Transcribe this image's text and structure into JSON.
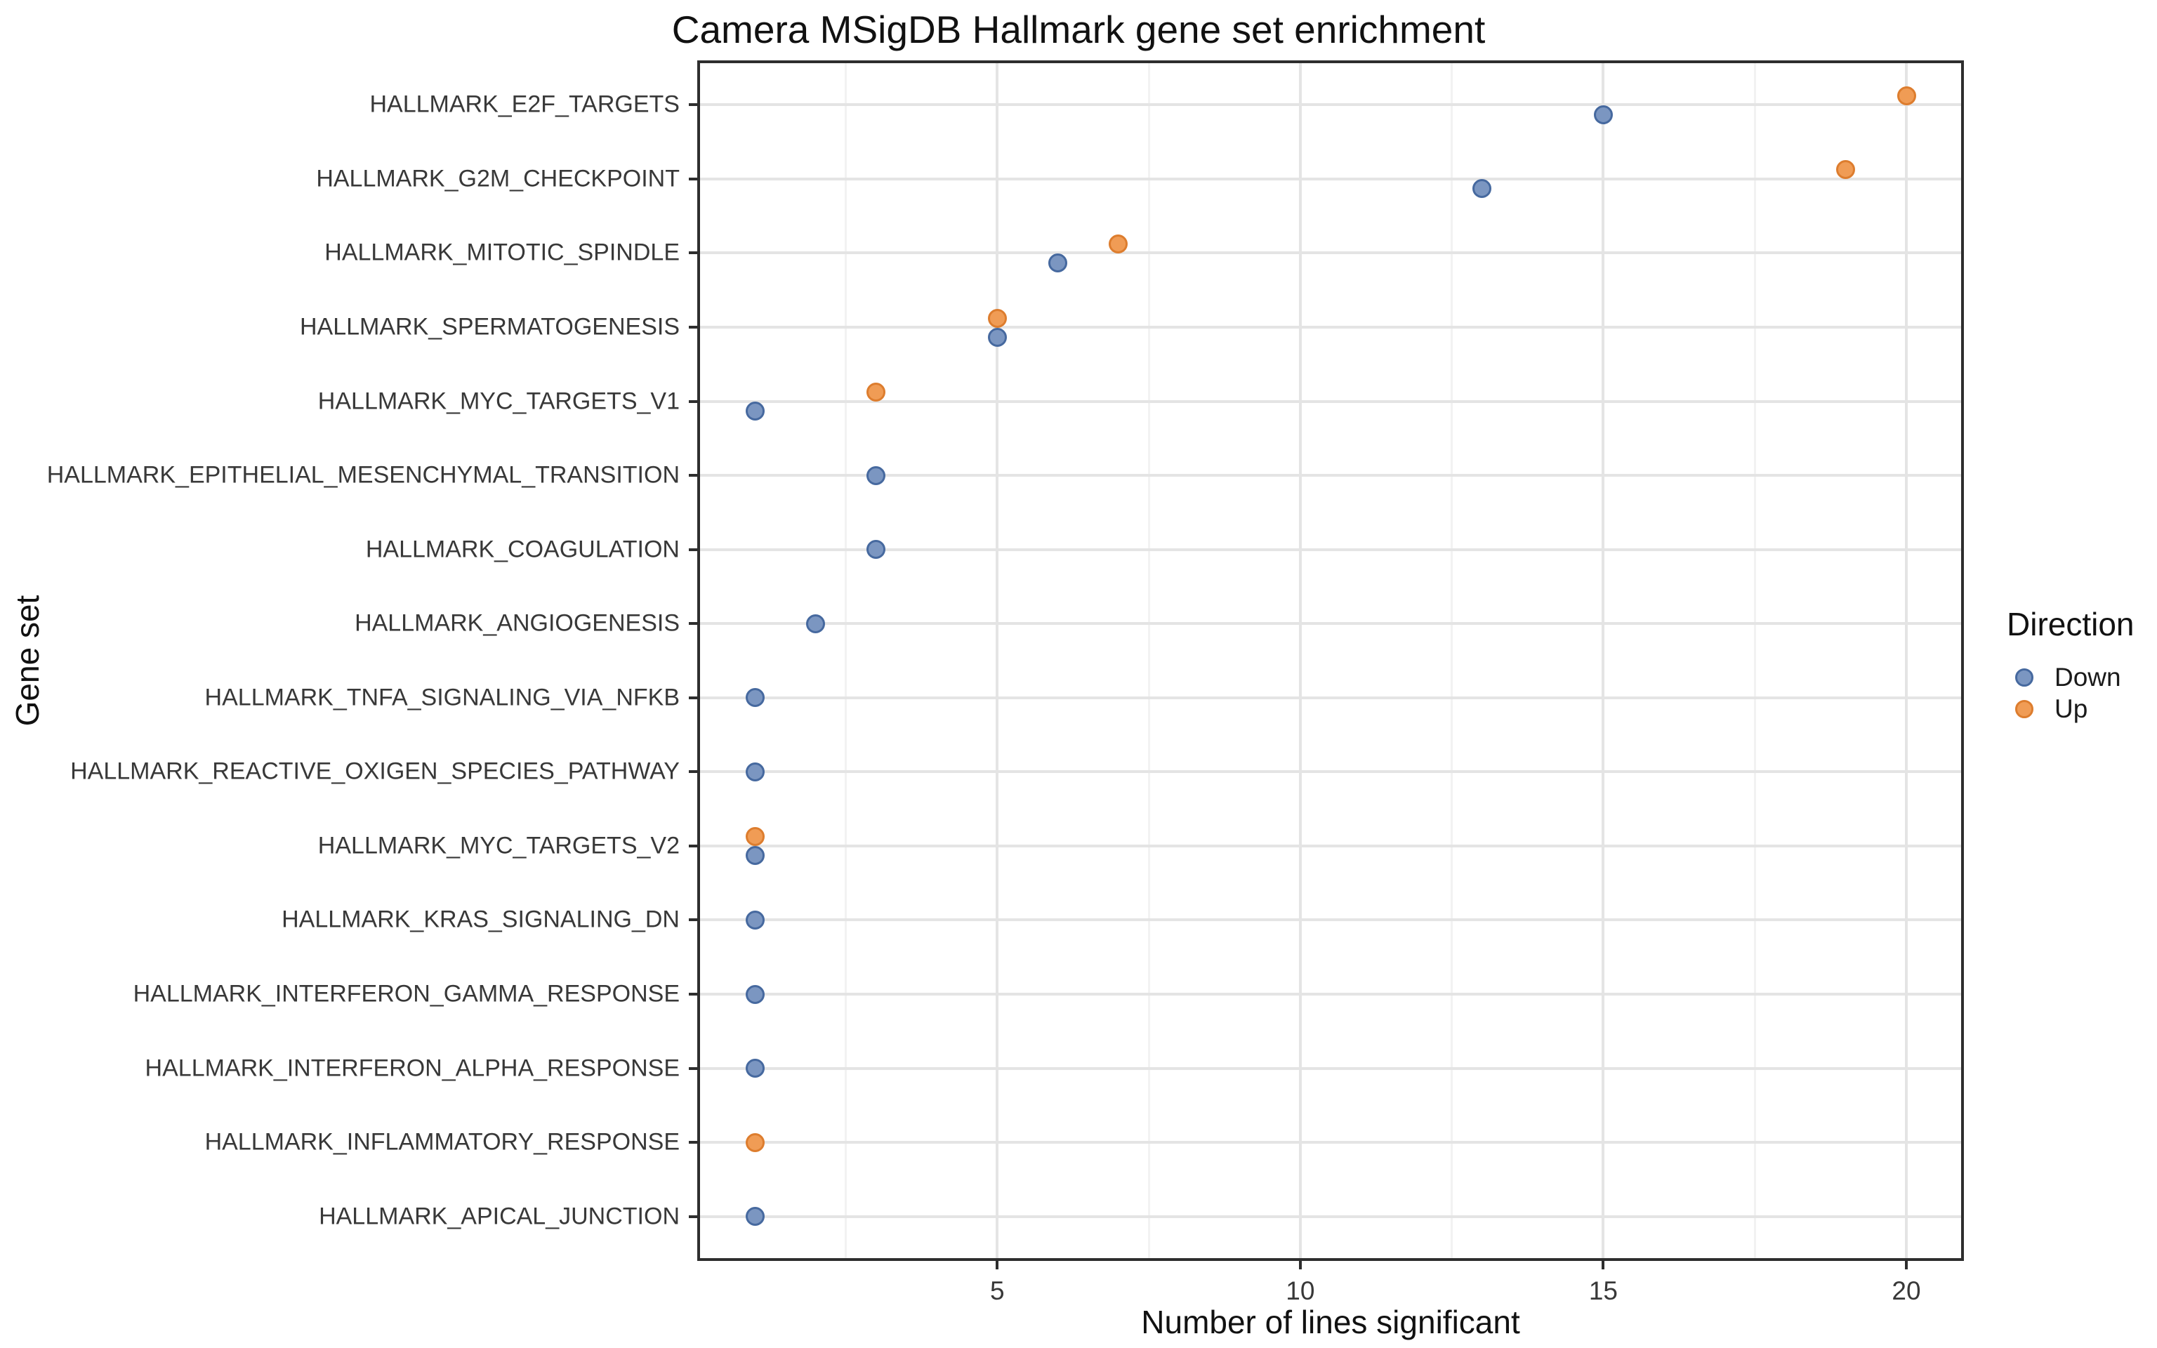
{
  "title": "Camera MSigDB Hallmark gene set enrichment",
  "axes": {
    "x": {
      "label": "Number of lines significant",
      "major_ticks": [
        5,
        10,
        15,
        20
      ],
      "minor_gridlines": [
        2.5,
        7.5,
        12.5,
        17.5
      ],
      "range": [
        0.05,
        20.95
      ]
    },
    "y": {
      "label": "Gene set"
    }
  },
  "legend": {
    "title": "Direction",
    "items": [
      {
        "label": "Down",
        "key": "down"
      },
      {
        "label": "Up",
        "key": "up"
      }
    ]
  },
  "colors": {
    "down_fill": "#7b96c1",
    "down_stroke": "#46699f",
    "up_fill": "#f09c55",
    "up_stroke": "#dd7d2e",
    "grid_major": "#e4e4e4",
    "grid_minor": "#f2f2f2",
    "panel_border": "#2e2e2e",
    "axis_text": "#383838",
    "title_text": "#111111"
  },
  "chart_data": {
    "type": "scatter",
    "orientation": "horizontal",
    "title": "Camera MSigDB Hallmark gene set enrichment",
    "xlabel": "Number of lines significant",
    "ylabel": "Gene set",
    "xlim": [
      0.05,
      20.95
    ],
    "x_ticks": [
      5,
      10,
      15,
      20
    ],
    "grid": true,
    "legend_position": "right",
    "legend_title": "Direction",
    "categories": [
      "HALLMARK_E2F_TARGETS",
      "HALLMARK_G2M_CHECKPOINT",
      "HALLMARK_MITOTIC_SPINDLE",
      "HALLMARK_SPERMATOGENESIS",
      "HALLMARK_MYC_TARGETS_V1",
      "HALLMARK_EPITHELIAL_MESENCHYMAL_TRANSITION",
      "HALLMARK_COAGULATION",
      "HALLMARK_ANGIOGENESIS",
      "HALLMARK_TNFA_SIGNALING_VIA_NFKB",
      "HALLMARK_REACTIVE_OXIGEN_SPECIES_PATHWAY",
      "HALLMARK_MYC_TARGETS_V2",
      "HALLMARK_KRAS_SIGNALING_DN",
      "HALLMARK_INTERFERON_GAMMA_RESPONSE",
      "HALLMARK_INTERFERON_ALPHA_RESPONSE",
      "HALLMARK_INFLAMMATORY_RESPONSE",
      "HALLMARK_APICAL_JUNCTION"
    ],
    "series": [
      {
        "name": "Down",
        "values": [
          15,
          13,
          6,
          5,
          1,
          3,
          3,
          2,
          1,
          1,
          1,
          1,
          1,
          1,
          null,
          1
        ]
      },
      {
        "name": "Up",
        "values": [
          20,
          19,
          7,
          5,
          3,
          null,
          null,
          null,
          null,
          null,
          1,
          null,
          null,
          null,
          1,
          null
        ]
      }
    ]
  }
}
